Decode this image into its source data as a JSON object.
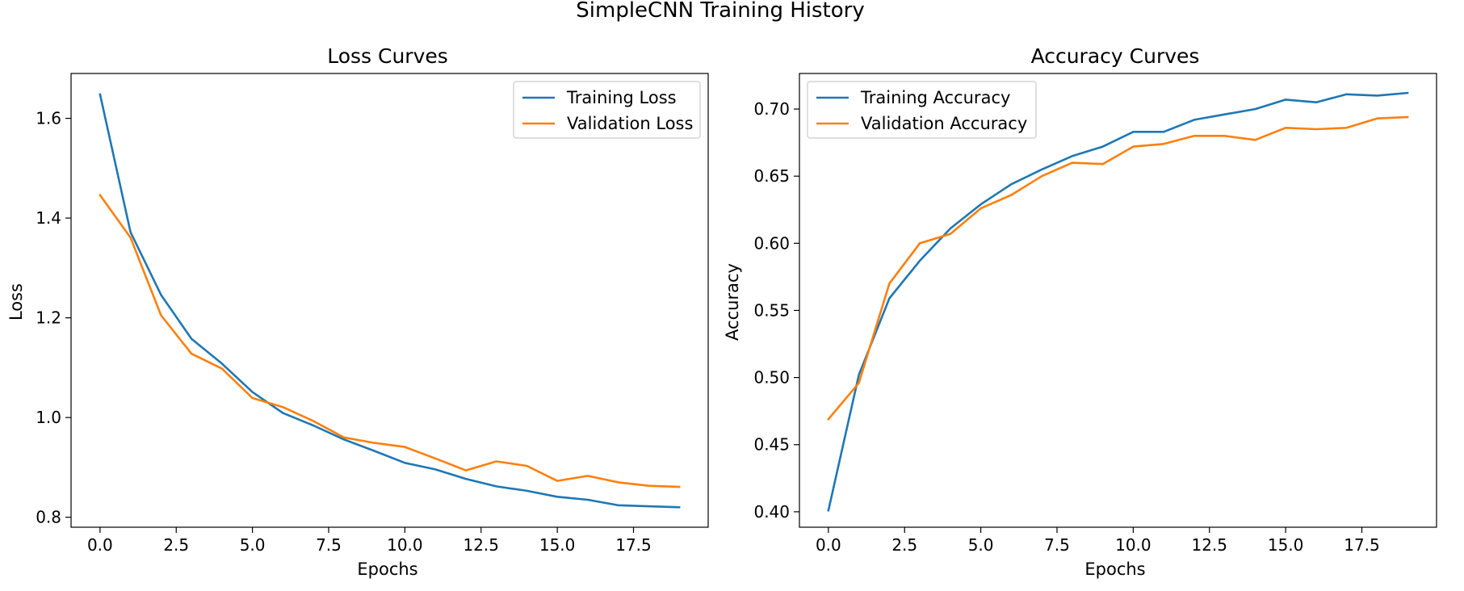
{
  "figure": {
    "title": "SimpleCNN Training History"
  },
  "chart_data": [
    {
      "type": "line",
      "title": "Loss Curves",
      "xlabel": "Epochs",
      "ylabel": "Loss",
      "xlim": [
        -0.95,
        19.95
      ],
      "ylim": [
        0.78,
        1.69
      ],
      "xticks": [
        0.0,
        2.5,
        5.0,
        7.5,
        10.0,
        12.5,
        15.0,
        17.5
      ],
      "xtick_labels": [
        "0.0",
        "2.5",
        "5.0",
        "7.5",
        "10.0",
        "12.5",
        "15.0",
        "17.5"
      ],
      "yticks": [
        0.8,
        1.0,
        1.2,
        1.4,
        1.6
      ],
      "ytick_labels": [
        "0.8",
        "1.0",
        "1.2",
        "1.4",
        "1.6"
      ],
      "legend_position": "upper right",
      "grid": false,
      "x": [
        0,
        1,
        2,
        3,
        4,
        5,
        6,
        7,
        8,
        9,
        10,
        11,
        12,
        13,
        14,
        15,
        16,
        17,
        18,
        19
      ],
      "series": [
        {
          "name": "Training Loss",
          "color": "#1f77b4",
          "values": [
            1.648,
            1.372,
            1.246,
            1.158,
            1.108,
            1.051,
            1.009,
            0.984,
            0.956,
            0.933,
            0.909,
            0.896,
            0.877,
            0.862,
            0.853,
            0.841,
            0.835,
            0.824,
            0.822,
            0.82
          ]
        },
        {
          "name": "Validation Loss",
          "color": "#ff7f0e",
          "values": [
            1.446,
            1.361,
            1.205,
            1.128,
            1.098,
            1.039,
            1.021,
            0.993,
            0.96,
            0.949,
            0.941,
            0.918,
            0.894,
            0.912,
            0.903,
            0.873,
            0.883,
            0.87,
            0.863,
            0.861
          ]
        }
      ]
    },
    {
      "type": "line",
      "title": "Accuracy Curves",
      "xlabel": "Epochs",
      "ylabel": "Accuracy",
      "xlim": [
        -0.95,
        19.95
      ],
      "ylim": [
        0.3885,
        0.7265
      ],
      "xticks": [
        0.0,
        2.5,
        5.0,
        7.5,
        10.0,
        12.5,
        15.0,
        17.5
      ],
      "xtick_labels": [
        "0.0",
        "2.5",
        "5.0",
        "7.5",
        "10.0",
        "12.5",
        "15.0",
        "17.5"
      ],
      "yticks": [
        0.4,
        0.45,
        0.5,
        0.55,
        0.6,
        0.65,
        0.7
      ],
      "ytick_labels": [
        "0.40",
        "0.45",
        "0.50",
        "0.55",
        "0.60",
        "0.65",
        "0.70"
      ],
      "legend_position": "upper left",
      "grid": false,
      "x": [
        0,
        1,
        2,
        3,
        4,
        5,
        6,
        7,
        8,
        9,
        10,
        11,
        12,
        13,
        14,
        15,
        16,
        17,
        18,
        19
      ],
      "series": [
        {
          "name": "Training Accuracy",
          "color": "#1f77b4",
          "values": [
            0.401,
            0.502,
            0.559,
            0.587,
            0.611,
            0.629,
            0.644,
            0.655,
            0.665,
            0.672,
            0.683,
            0.683,
            0.692,
            0.696,
            0.7,
            0.707,
            0.705,
            0.711,
            0.71,
            0.712
          ]
        },
        {
          "name": "Validation Accuracy",
          "color": "#ff7f0e",
          "values": [
            0.469,
            0.496,
            0.57,
            0.6,
            0.607,
            0.626,
            0.636,
            0.65,
            0.66,
            0.659,
            0.672,
            0.674,
            0.68,
            0.68,
            0.677,
            0.686,
            0.685,
            0.686,
            0.693,
            0.694
          ]
        }
      ]
    }
  ]
}
